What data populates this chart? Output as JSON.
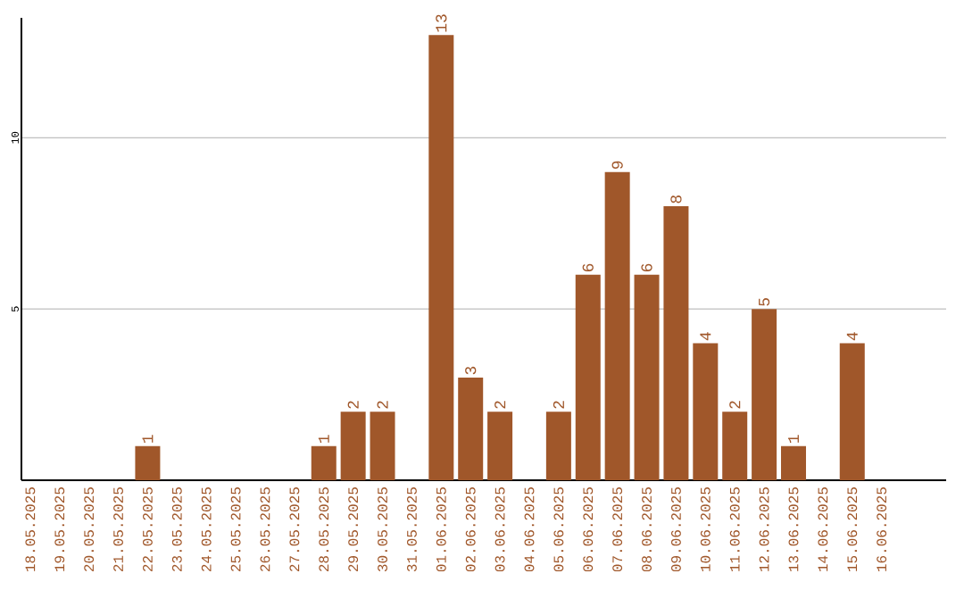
{
  "chart_data": {
    "type": "bar",
    "categories": [
      "18.05.2025",
      "19.05.2025",
      "20.05.2025",
      "21.05.2025",
      "22.05.2025",
      "23.05.2025",
      "24.05.2025",
      "25.05.2025",
      "26.05.2025",
      "27.05.2025",
      "28.05.2025",
      "29.05.2025",
      "30.05.2025",
      "31.05.2025",
      "01.06.2025",
      "02.06.2025",
      "03.06.2025",
      "04.06.2025",
      "05.06.2025",
      "06.06.2025",
      "07.06.2025",
      "08.06.2025",
      "09.06.2025",
      "10.06.2025",
      "11.06.2025",
      "12.06.2025",
      "13.06.2025",
      "14.06.2025",
      "15.06.2025",
      "16.06.2025"
    ],
    "values": [
      null,
      null,
      null,
      null,
      1,
      null,
      null,
      null,
      null,
      null,
      1,
      2,
      2,
      null,
      13,
      3,
      2,
      null,
      2,
      6,
      9,
      6,
      8,
      4,
      2,
      5,
      1,
      null,
      4,
      null
    ],
    "color": "#a0572a",
    "ylim": [
      0,
      13.5
    ],
    "yticks": [
      5,
      10
    ],
    "grid": "y",
    "data_labels": true
  }
}
